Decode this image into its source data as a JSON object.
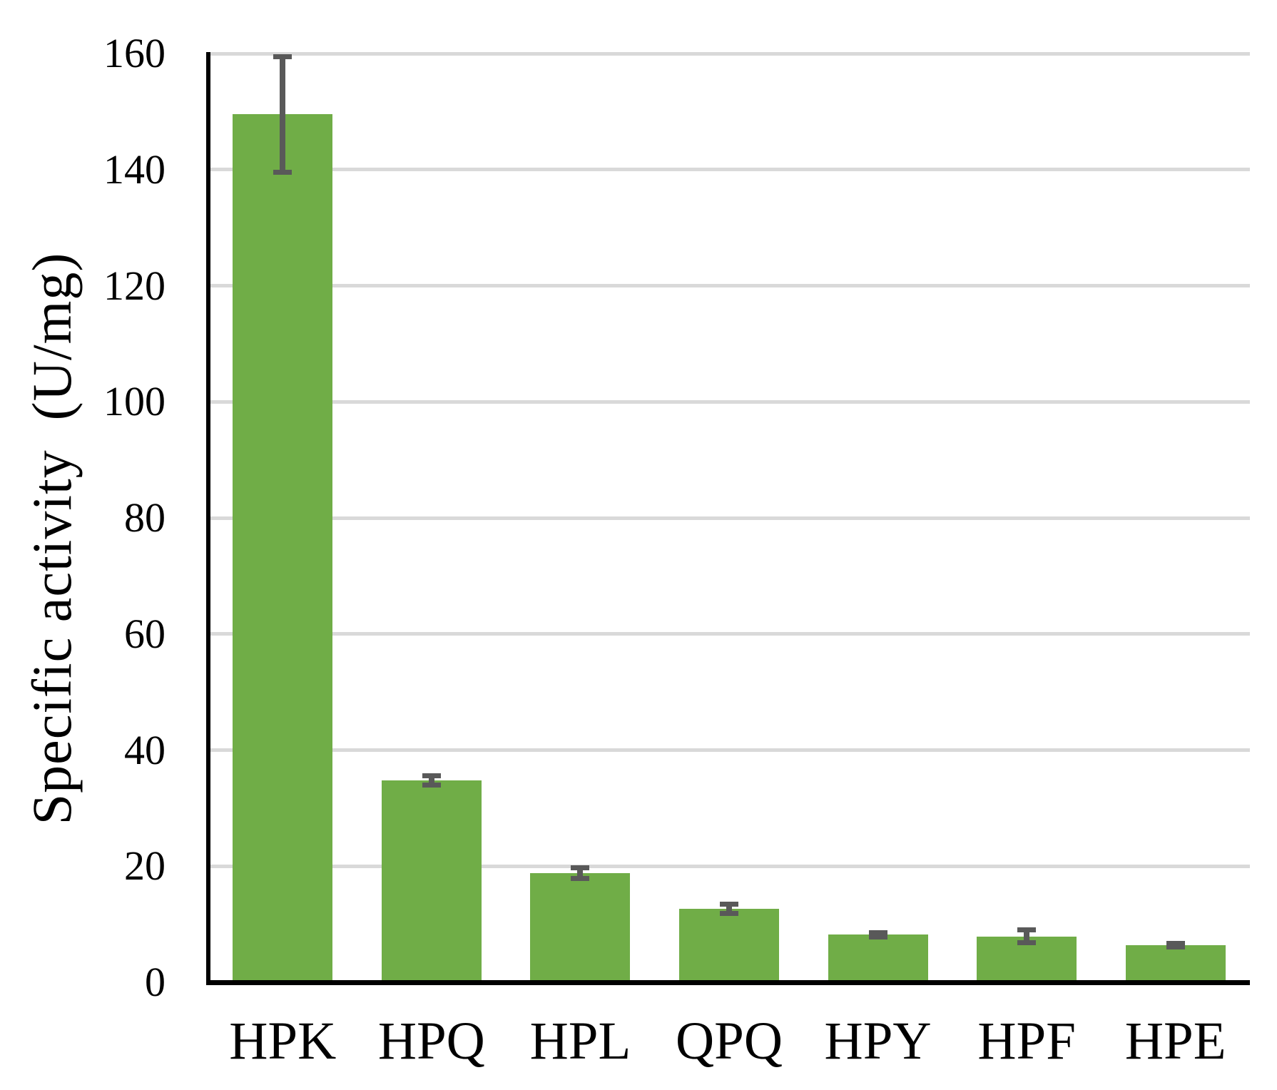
{
  "figure": {
    "background": "#ffffff"
  },
  "chart_data": {
    "type": "bar",
    "title": "",
    "xlabel": "",
    "ylabel": "Specific activity  (U/mg)",
    "categories": [
      "HPK",
      "HPQ",
      "HPL",
      "QPQ",
      "HPY",
      "HPF",
      "HPE"
    ],
    "series": [
      {
        "name": "Specific activity",
        "values": [
          149.5,
          34.8,
          18.8,
          12.6,
          8.2,
          7.9,
          6.4
        ],
        "errors": [
          10,
          0.8,
          0.9,
          0.8,
          0.4,
          1.1,
          0.3
        ]
      }
    ],
    "ylim": [
      0,
      160
    ],
    "yticks": [
      0,
      20,
      40,
      60,
      80,
      100,
      120,
      140,
      160
    ],
    "grid": "horizontal",
    "legend": "none",
    "error_bars": "plus-minus-with-caps",
    "colors": {
      "bar": "#70AD47",
      "error": "#595959",
      "gridline": "#D9D9D9",
      "axis": "#000000",
      "text": "#000000"
    }
  }
}
